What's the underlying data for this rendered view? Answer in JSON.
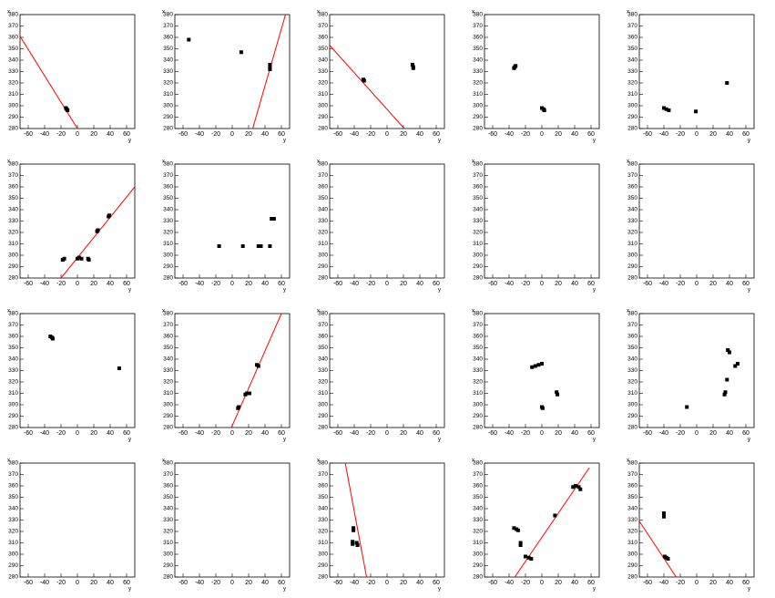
{
  "chart_data": [
    {
      "type": "scatter",
      "xlabel": "y",
      "ylabel": "x",
      "xlim": [
        -70,
        70
      ],
      "ylim": [
        280,
        380
      ],
      "xticks": [
        -60,
        -40,
        -20,
        0,
        20,
        40,
        60
      ],
      "yticks": [
        280,
        290,
        300,
        310,
        320,
        330,
        340,
        350,
        360,
        370,
        380
      ],
      "color": "#000000",
      "fit_color": "#ff0000",
      "x": [
        -14,
        -13,
        -12
      ],
      "y": [
        298,
        297,
        296
      ],
      "fit": {
        "x": [
          -70,
          0
        ],
        "y": [
          361,
          280
        ]
      }
    },
    {
      "type": "scatter",
      "xlabel": "y",
      "ylabel": "x",
      "xlim": [
        -70,
        70
      ],
      "ylim": [
        280,
        380
      ],
      "xticks": [
        -60,
        -40,
        -20,
        0,
        20,
        40,
        60
      ],
      "yticks": [
        280,
        290,
        300,
        310,
        320,
        330,
        340,
        350,
        360,
        370,
        380
      ],
      "color": "#000000",
      "fit_color": "#ff0000",
      "x": [
        -53,
        11,
        46,
        46,
        46
      ],
      "y": [
        358,
        347,
        336,
        334,
        332
      ],
      "fit": {
        "x": [
          25,
          65
        ],
        "y": [
          280,
          380
        ]
      }
    },
    {
      "type": "scatter",
      "xlabel": "y",
      "ylabel": "x",
      "xlim": [
        -70,
        70
      ],
      "ylim": [
        280,
        380
      ],
      "xticks": [
        -60,
        -40,
        -20,
        0,
        20,
        40,
        60
      ],
      "yticks": [
        280,
        290,
        300,
        310,
        320,
        330,
        340,
        350,
        360,
        370,
        380
      ],
      "color": "#000000",
      "fit_color": "#ff0000",
      "x": [
        -29,
        -28,
        31,
        32,
        32
      ],
      "y": [
        323,
        322,
        336,
        334,
        333
      ],
      "fit": {
        "x": [
          -70,
          21
        ],
        "y": [
          353,
          280
        ]
      }
    },
    {
      "type": "scatter",
      "xlabel": "y",
      "ylabel": "x",
      "xlim": [
        -70,
        70
      ],
      "ylim": [
        280,
        380
      ],
      "xticks": [
        -60,
        -40,
        -20,
        0,
        20,
        40,
        60
      ],
      "yticks": [
        280,
        290,
        300,
        310,
        320,
        330,
        340,
        350,
        360,
        370,
        380
      ],
      "color": "#000000",
      "x": [
        -34,
        -33,
        -32,
        0,
        2,
        3
      ],
      "y": [
        333,
        334,
        335,
        298,
        297,
        296
      ]
    },
    {
      "type": "scatter",
      "xlabel": "y",
      "ylabel": "x",
      "xlim": [
        -70,
        70
      ],
      "ylim": [
        280,
        380
      ],
      "xticks": [
        -60,
        -40,
        -20,
        0,
        20,
        40,
        60
      ],
      "yticks": [
        280,
        290,
        300,
        310,
        320,
        330,
        340,
        350,
        360,
        370,
        380
      ],
      "color": "#000000",
      "x": [
        -40,
        -37,
        -34,
        -1,
        37
      ],
      "y": [
        298,
        297,
        296,
        295,
        320
      ]
    },
    {
      "type": "scatter",
      "xlabel": "y",
      "ylabel": "x",
      "xlim": [
        -70,
        70
      ],
      "ylim": [
        280,
        380
      ],
      "xticks": [
        -60,
        -40,
        -20,
        0,
        20,
        40,
        60
      ],
      "yticks": [
        280,
        290,
        300,
        310,
        320,
        330,
        340,
        350,
        360,
        370,
        380
      ],
      "color": "#000000",
      "fit_color": "#ff0000",
      "x": [
        -18,
        -16,
        0,
        2,
        5,
        13,
        14,
        24,
        25,
        38,
        39
      ],
      "y": [
        296,
        297,
        297,
        298,
        297,
        297,
        296,
        321,
        322,
        334,
        335
      ],
      "fit": {
        "x": [
          -20,
          70
        ],
        "y": [
          280,
          360
        ]
      }
    },
    {
      "type": "scatter",
      "xlabel": "y",
      "ylabel": "x",
      "xlim": [
        -70,
        70
      ],
      "ylim": [
        280,
        380
      ],
      "xticks": [
        -60,
        -40,
        -20,
        0,
        20,
        40,
        60
      ],
      "yticks": [
        280,
        290,
        300,
        310,
        320,
        330,
        340,
        350,
        360,
        370,
        380
      ],
      "color": "#000000",
      "x": [
        -16,
        13,
        32,
        35,
        46,
        48,
        51
      ],
      "y": [
        308,
        308,
        308,
        308,
        308,
        332,
        332
      ]
    },
    {
      "type": "scatter",
      "xlabel": "y",
      "ylabel": "x",
      "xlim": [
        -70,
        70
      ],
      "ylim": [
        280,
        380
      ],
      "xticks": [
        -60,
        -40,
        -20,
        0,
        20,
        40,
        60
      ],
      "yticks": [
        280,
        290,
        300,
        310,
        320,
        330,
        340,
        350,
        360,
        370,
        380
      ],
      "color": "#000000",
      "x": [],
      "y": []
    },
    {
      "type": "scatter",
      "xlabel": "y",
      "ylabel": "x",
      "xlim": [
        -70,
        70
      ],
      "ylim": [
        280,
        380
      ],
      "xticks": [
        -60,
        -40,
        -20,
        0,
        20,
        40,
        60
      ],
      "yticks": [
        280,
        290,
        300,
        310,
        320,
        330,
        340,
        350,
        360,
        370,
        380
      ],
      "color": "#000000",
      "x": [],
      "y": []
    },
    {
      "type": "scatter",
      "xlabel": "y",
      "ylabel": "x",
      "xlim": [
        -70,
        70
      ],
      "ylim": [
        280,
        380
      ],
      "xticks": [
        -60,
        -40,
        -20,
        0,
        20,
        40,
        60
      ],
      "yticks": [
        280,
        290,
        300,
        310,
        320,
        330,
        340,
        350,
        360,
        370,
        380
      ],
      "color": "#000000",
      "x": [],
      "y": []
    },
    {
      "type": "scatter",
      "xlabel": "y",
      "ylabel": "x",
      "xlim": [
        -70,
        70
      ],
      "ylim": [
        280,
        380
      ],
      "xticks": [
        -60,
        -40,
        -20,
        0,
        20,
        40,
        60
      ],
      "yticks": [
        280,
        290,
        300,
        310,
        320,
        330,
        340,
        350,
        360,
        370,
        380
      ],
      "color": "#000000",
      "x": [
        -33,
        -31,
        -30,
        51
      ],
      "y": [
        360,
        359,
        358,
        332
      ]
    },
    {
      "type": "scatter",
      "xlabel": "y",
      "ylabel": "x",
      "xlim": [
        -70,
        70
      ],
      "ylim": [
        280,
        380
      ],
      "xticks": [
        -60,
        -40,
        -20,
        0,
        20,
        40,
        60
      ],
      "yticks": [
        280,
        290,
        300,
        310,
        320,
        330,
        340,
        350,
        360,
        370,
        380
      ],
      "color": "#000000",
      "fit_color": "#ff0000",
      "x": [
        7,
        8,
        16,
        18,
        21,
        30,
        32
      ],
      "y": [
        297,
        298,
        309,
        310,
        310,
        335,
        334
      ],
      "fit": {
        "x": [
          -1,
          60
        ],
        "y": [
          280,
          380
        ]
      }
    },
    {
      "type": "scatter",
      "xlabel": "y",
      "ylabel": "x",
      "xlim": [
        -70,
        70
      ],
      "ylim": [
        280,
        380
      ],
      "xticks": [
        -60,
        -40,
        -20,
        0,
        20,
        40,
        60
      ],
      "yticks": [
        280,
        290,
        300,
        310,
        320,
        330,
        340,
        350,
        360,
        370,
        380
      ],
      "color": "#000000",
      "x": [],
      "y": []
    },
    {
      "type": "scatter",
      "xlabel": "y",
      "ylabel": "x",
      "xlim": [
        -70,
        70
      ],
      "ylim": [
        280,
        380
      ],
      "xticks": [
        -60,
        -40,
        -20,
        0,
        20,
        40,
        60
      ],
      "yticks": [
        280,
        290,
        300,
        310,
        320,
        330,
        340,
        350,
        360,
        370,
        380
      ],
      "color": "#000000",
      "x": [
        -12,
        -8,
        -4,
        0,
        0,
        1,
        18,
        19
      ],
      "y": [
        333,
        334,
        335,
        336,
        298,
        297,
        311,
        309
      ]
    },
    {
      "type": "scatter",
      "xlabel": "y",
      "ylabel": "x",
      "xlim": [
        -70,
        70
      ],
      "ylim": [
        280,
        380
      ],
      "xticks": [
        -60,
        -40,
        -20,
        0,
        20,
        40,
        60
      ],
      "yticks": [
        280,
        290,
        300,
        310,
        320,
        330,
        340,
        350,
        360,
        370,
        380
      ],
      "color": "#000000",
      "x": [
        -12,
        34,
        35,
        37,
        38,
        40,
        47,
        50
      ],
      "y": [
        298,
        309,
        311,
        322,
        348,
        346,
        334,
        336
      ]
    },
    {
      "type": "scatter",
      "xlabel": "y",
      "ylabel": "x",
      "xlim": [
        -70,
        70
      ],
      "ylim": [
        280,
        380
      ],
      "xticks": [
        -60,
        -40,
        -20,
        0,
        20,
        40,
        60
      ],
      "yticks": [
        280,
        290,
        300,
        310,
        320,
        330,
        340,
        350,
        360,
        370,
        380
      ],
      "color": "#000000",
      "x": [],
      "y": []
    },
    {
      "type": "scatter",
      "xlabel": "y",
      "ylabel": "x",
      "xlim": [
        -70,
        70
      ],
      "ylim": [
        280,
        380
      ],
      "xticks": [
        -60,
        -40,
        -20,
        0,
        20,
        40,
        60
      ],
      "yticks": [
        280,
        290,
        300,
        310,
        320,
        330,
        340,
        350,
        360,
        370,
        380
      ],
      "color": "#000000",
      "x": [],
      "y": []
    },
    {
      "type": "scatter",
      "xlabel": "y",
      "ylabel": "x",
      "xlim": [
        -70,
        70
      ],
      "ylim": [
        280,
        380
      ],
      "xticks": [
        -60,
        -40,
        -20,
        0,
        20,
        40,
        60
      ],
      "yticks": [
        280,
        290,
        300,
        310,
        320,
        330,
        340,
        350,
        360,
        370,
        380
      ],
      "color": "#000000",
      "fit_color": "#ff0000",
      "x": [
        -41,
        -41,
        -42,
        -42,
        -37,
        -36
      ],
      "y": [
        323,
        321,
        311,
        309,
        310,
        308
      ],
      "fit": {
        "x": [
          -51,
          -25
        ],
        "y": [
          380,
          280
        ]
      }
    },
    {
      "type": "scatter",
      "xlabel": "y",
      "ylabel": "x",
      "xlim": [
        -70,
        70
      ],
      "ylim": [
        280,
        380
      ],
      "xticks": [
        -60,
        -40,
        -20,
        0,
        20,
        40,
        60
      ],
      "yticks": [
        280,
        290,
        300,
        310,
        320,
        330,
        340,
        350,
        360,
        370,
        380
      ],
      "color": "#000000",
      "fit_color": "#ff0000",
      "x": [
        -34,
        -31,
        -29,
        -26,
        -26,
        -20,
        -16,
        -13,
        16,
        38,
        41,
        45,
        47
      ],
      "y": [
        323,
        322,
        321,
        310,
        308,
        298,
        297,
        296,
        334,
        359,
        360,
        359,
        357
      ],
      "fit": {
        "x": [
          -33,
          58
        ],
        "y": [
          280,
          376
        ]
      }
    },
    {
      "type": "scatter",
      "xlabel": "y",
      "ylabel": "x",
      "xlim": [
        -70,
        70
      ],
      "ylim": [
        280,
        380
      ],
      "xticks": [
        -60,
        -40,
        -20,
        0,
        20,
        40,
        60
      ],
      "yticks": [
        280,
        290,
        300,
        310,
        320,
        330,
        340,
        350,
        360,
        370,
        380
      ],
      "color": "#000000",
      "fit_color": "#ff0000",
      "x": [
        -40,
        -40,
        -39,
        -37,
        -35
      ],
      "y": [
        333,
        336,
        298,
        297,
        296
      ],
      "fit": {
        "x": [
          -70,
          -25
        ],
        "y": [
          329,
          280
        ]
      }
    }
  ]
}
